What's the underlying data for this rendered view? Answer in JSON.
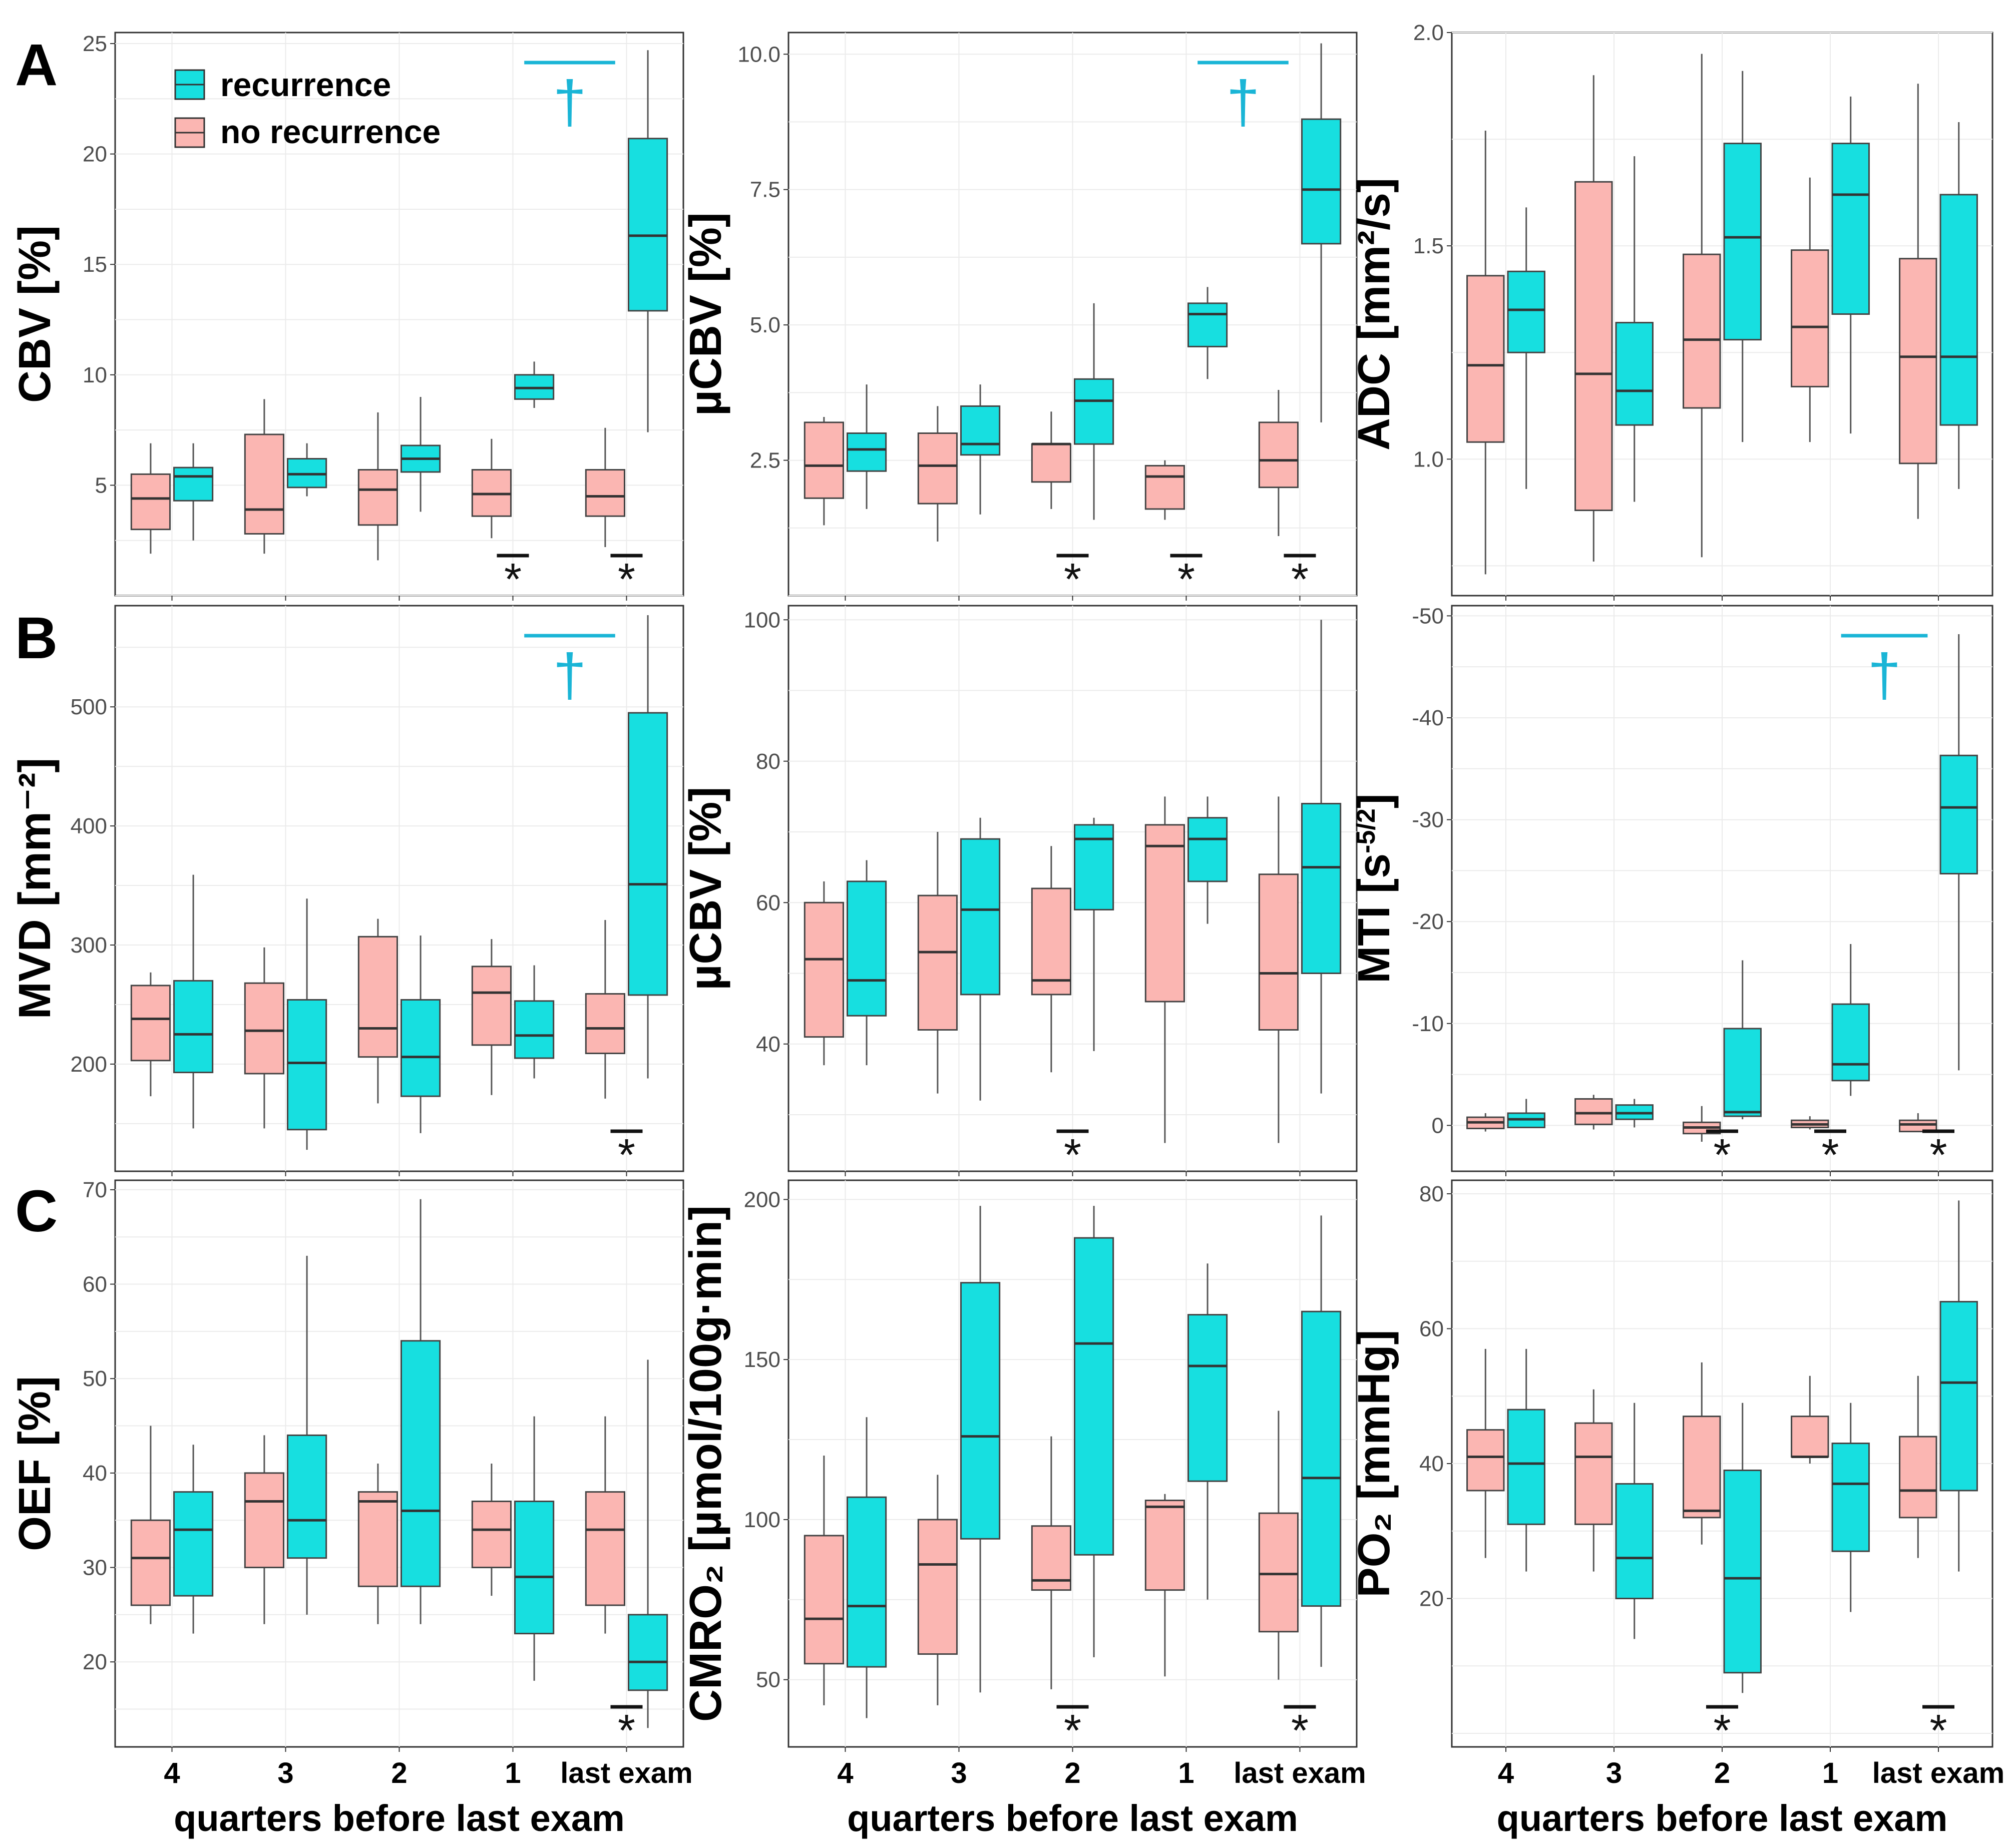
{
  "colors": {
    "recurrence": "#17dfe0",
    "no_recurrence": "#fbb6b2",
    "dagger": "#1ab5d6",
    "grid": "#ebebeb",
    "frame": "#333333",
    "whisker": "#555555"
  },
  "legend": {
    "recurrence": "recurrence",
    "no_recurrence": "no recurrence"
  },
  "panel_labels": {
    "A": "A",
    "B": "B",
    "C": "C"
  },
  "categories": [
    "4",
    "3",
    "2",
    "1",
    "last exam"
  ],
  "x_label": "quarters before last exam",
  "chart_data": [
    {
      "id": "cbv",
      "type": "box",
      "ylabel": "CBV [%]",
      "ylim": [
        0,
        25.5
      ],
      "yticks": [
        5,
        10,
        15,
        20,
        25
      ],
      "tick_labels": [
        "5",
        "10",
        "15",
        "20",
        "25"
      ],
      "series": [
        {
          "name": "no recurrence",
          "boxes": [
            [
              1.9,
              3.0,
              4.4,
              5.5,
              6.9
            ],
            [
              1.9,
              2.8,
              3.9,
              7.3,
              8.9
            ],
            [
              1.6,
              3.2,
              4.8,
              5.7,
              8.3
            ],
            [
              2.6,
              3.6,
              4.6,
              5.7,
              7.1
            ],
            [
              2.2,
              3.6,
              4.5,
              5.7,
              7.6
            ]
          ]
        },
        {
          "name": "recurrence",
          "boxes": [
            [
              2.5,
              4.3,
              5.4,
              5.8,
              6.9
            ],
            [
              4.5,
              4.9,
              5.5,
              6.2,
              6.9
            ],
            [
              3.8,
              5.6,
              6.2,
              6.8,
              9.0
            ],
            [
              8.5,
              8.9,
              9.4,
              10.0,
              10.6
            ],
            [
              7.4,
              12.9,
              16.3,
              20.7,
              24.7
            ]
          ]
        }
      ],
      "stars": [
        "*",
        "*"
      ],
      "star_positions": [
        3,
        4
      ],
      "dagger": "†",
      "dagger_range": [
        3.6,
        4.4
      ]
    },
    {
      "id": "ucbv",
      "type": "box",
      "ylabel": "µCBV [%]",
      "ylim": [
        0,
        10.4
      ],
      "yticks": [
        2.5,
        5.0,
        7.5,
        10.0
      ],
      "tick_labels": [
        "2.5",
        "5.0",
        "7.5",
        "10.0"
      ],
      "series": [
        {
          "name": "no recurrence",
          "boxes": [
            [
              1.3,
              1.8,
              2.4,
              3.2,
              3.3
            ],
            [
              1.0,
              1.7,
              2.4,
              3.0,
              3.5
            ],
            [
              1.6,
              2.1,
              2.8,
              2.8,
              3.4
            ],
            [
              1.4,
              1.6,
              2.2,
              2.4,
              2.5
            ],
            [
              1.1,
              2.0,
              2.5,
              3.2,
              3.8
            ]
          ]
        },
        {
          "name": "recurrence",
          "boxes": [
            [
              1.6,
              2.3,
              2.7,
              3.0,
              3.9
            ],
            [
              1.5,
              2.6,
              2.8,
              3.5,
              3.9
            ],
            [
              1.4,
              2.8,
              3.6,
              4.0,
              5.4
            ],
            [
              4.0,
              4.6,
              5.2,
              5.4,
              5.7
            ],
            [
              3.2,
              6.5,
              7.5,
              8.8,
              10.2
            ]
          ]
        }
      ],
      "stars": [
        "*",
        "*",
        "*"
      ],
      "star_positions": [
        2,
        3,
        4
      ],
      "dagger": "†",
      "dagger_range": [
        3.6,
        4.4
      ]
    },
    {
      "id": "adc",
      "type": "box",
      "ylabel": "ADC [mm²/s]",
      "ylim": [
        0.68,
        2.0
      ],
      "yticks": [
        1.0,
        1.5,
        2.0
      ],
      "tick_labels": [
        "1.0",
        "1.5",
        "2.0"
      ],
      "series": [
        {
          "name": "no recurrence",
          "boxes": [
            [
              0.73,
              1.04,
              1.22,
              1.43,
              1.77
            ],
            [
              0.76,
              0.88,
              1.2,
              1.65,
              1.9
            ],
            [
              0.77,
              1.12,
              1.28,
              1.48,
              1.95
            ],
            [
              1.04,
              1.17,
              1.31,
              1.49,
              1.66
            ],
            [
              0.86,
              0.99,
              1.24,
              1.47,
              1.88
            ]
          ]
        },
        {
          "name": "recurrence",
          "boxes": [
            [
              0.93,
              1.25,
              1.35,
              1.44,
              1.59
            ],
            [
              0.9,
              1.08,
              1.16,
              1.32,
              1.71
            ],
            [
              1.04,
              1.28,
              1.52,
              1.74,
              1.91
            ],
            [
              1.06,
              1.34,
              1.62,
              1.74,
              1.85
            ],
            [
              0.93,
              1.08,
              1.24,
              1.62,
              1.79
            ]
          ]
        }
      ],
      "stars": [],
      "star_positions": [],
      "dagger": "",
      "dagger_range": []
    },
    {
      "id": "mvd",
      "type": "box",
      "ylabel": "MVD [mm⁻²]",
      "ylim": [
        110,
        585
      ],
      "yticks": [
        200,
        300,
        400,
        500
      ],
      "tick_labels": [
        "200",
        "300",
        "400",
        "500"
      ],
      "series": [
        {
          "name": "no recurrence",
          "boxes": [
            [
              173,
              203,
              238,
              266,
              277
            ],
            [
              146,
              192,
              228,
              268,
              298
            ],
            [
              167,
              206,
              230,
              307,
              322
            ],
            [
              174,
              216,
              260,
              282,
              305
            ],
            [
              171,
              209,
              230,
              259,
              321
            ]
          ]
        },
        {
          "name": "recurrence",
          "boxes": [
            [
              146,
              193,
              225,
              270,
              359
            ],
            [
              128,
              145,
              201,
              254,
              339
            ],
            [
              142,
              173,
              206,
              254,
              308
            ],
            [
              188,
              205,
              224,
              253,
              283
            ],
            [
              188,
              258,
              351,
              495,
              577
            ]
          ]
        }
      ],
      "stars": [
        "*"
      ],
      "star_positions": [
        4
      ],
      "dagger": "†",
      "dagger_range": [
        3.6,
        4.4
      ]
    },
    {
      "id": "ucbv2",
      "type": "box",
      "ylabel": "µCBV [%]",
      "ylim": [
        22,
        102
      ],
      "yticks": [
        40,
        60,
        80,
        100
      ],
      "tick_labels": [
        "40",
        "60",
        "80",
        "100"
      ],
      "series": [
        {
          "name": "no recurrence",
          "boxes": [
            [
              37,
              41,
              52,
              60,
              63
            ],
            [
              33,
              42,
              53,
              61,
              70
            ],
            [
              36,
              47,
              49,
              62,
              68
            ],
            [
              26,
              46,
              68,
              71,
              75
            ],
            [
              26,
              42,
              50,
              64,
              75
            ]
          ]
        },
        {
          "name": "recurrence",
          "boxes": [
            [
              37,
              44,
              49,
              63,
              66
            ],
            [
              32,
              47,
              59,
              69,
              72
            ],
            [
              39,
              59,
              69,
              71,
              72
            ],
            [
              57,
              63,
              69,
              72,
              75
            ],
            [
              33,
              50,
              65,
              74,
              100
            ]
          ]
        }
      ],
      "stars": [
        "*"
      ],
      "star_positions": [
        2
      ],
      "dagger": "",
      "dagger_range": []
    },
    {
      "id": "mti",
      "type": "box",
      "ylabel": "MTI [s⁻⁵ᐟ²]",
      "ylabel_display": "MTI [s^-5/2]",
      "ylim": [
        4.5,
        -51
      ],
      "yticks": [
        0,
        -10,
        -20,
        -30,
        -40,
        -50
      ],
      "tick_labels": [
        "0",
        "-10",
        "-20",
        "-30",
        "-40",
        "-50"
      ],
      "series": [
        {
          "name": "no recurrence",
          "boxes": [
            [
              0.6,
              0.3,
              -0.3,
              -0.8,
              -1.2
            ],
            [
              0.4,
              -0.1,
              -1.2,
              -2.6,
              -3.0
            ],
            [
              1.6,
              0.8,
              0.2,
              -0.3,
              -1.9
            ],
            [
              0.4,
              0.2,
              -0.1,
              -0.5,
              -0.9
            ],
            [
              0.5,
              0.6,
              -0.1,
              -0.5,
              -1.2
            ]
          ]
        },
        {
          "name": "recurrence",
          "boxes": [
            [
              0.2,
              0.2,
              -0.6,
              -1.2,
              -2.6
            ],
            [
              0.2,
              -0.6,
              -1.2,
              -2.0,
              -2.6
            ],
            [
              -0.6,
              -0.9,
              -1.3,
              -9.5,
              -16.2
            ],
            [
              -2.9,
              -4.4,
              -6.0,
              -11.9,
              -17.8
            ],
            [
              -5.4,
              -24.7,
              -31.2,
              -36.3,
              -48.2
            ]
          ]
        }
      ],
      "stars": [
        "*",
        "*",
        "*"
      ],
      "star_positions": [
        2,
        3,
        4
      ],
      "dagger": "†",
      "dagger_range": [
        3.6,
        4.4
      ]
    },
    {
      "id": "oef",
      "type": "box",
      "ylabel": "OEF [%]",
      "ylim": [
        11,
        71
      ],
      "yticks": [
        20,
        30,
        40,
        50,
        60,
        70
      ],
      "tick_labels": [
        "20",
        "30",
        "40",
        "50",
        "60",
        "70"
      ],
      "series": [
        {
          "name": "no recurrence",
          "boxes": [
            [
              24,
              26,
              31,
              35,
              45
            ],
            [
              24,
              30,
              37,
              40,
              44
            ],
            [
              24,
              28,
              37,
              38,
              41
            ],
            [
              27,
              30,
              34,
              37,
              41
            ],
            [
              23,
              26,
              34,
              38,
              46
            ]
          ]
        },
        {
          "name": "recurrence",
          "boxes": [
            [
              23,
              27,
              34,
              38,
              43
            ],
            [
              25,
              31,
              35,
              44,
              63
            ],
            [
              24,
              28,
              36,
              54,
              69
            ],
            [
              18,
              23,
              29,
              37,
              46
            ],
            [
              13,
              17,
              20,
              25,
              52
            ]
          ]
        }
      ],
      "stars": [
        "*"
      ],
      "star_positions": [
        4
      ],
      "dagger": "",
      "dagger_range": []
    },
    {
      "id": "cmro2",
      "type": "box",
      "ylabel": "CMRO₂ [µmol/100g·min]",
      "ylim": [
        29,
        206
      ],
      "yticks": [
        50,
        100,
        150,
        200
      ],
      "tick_labels": [
        "50",
        "100",
        "150",
        "200"
      ],
      "series": [
        {
          "name": "no recurrence",
          "boxes": [
            [
              42,
              55,
              69,
              95,
              120
            ],
            [
              42,
              58,
              86,
              100,
              114
            ],
            [
              47,
              78,
              81,
              98,
              126
            ],
            [
              51,
              78,
              104,
              106,
              108
            ],
            [
              50,
              65,
              83,
              102,
              134
            ]
          ]
        },
        {
          "name": "recurrence",
          "boxes": [
            [
              38,
              54,
              73,
              107,
              132
            ],
            [
              46,
              94,
              126,
              174,
              198
            ],
            [
              57,
              89,
              155,
              188,
              198
            ],
            [
              75,
              112,
              148,
              164,
              180
            ],
            [
              54,
              73,
              113,
              165,
              195
            ]
          ]
        }
      ],
      "stars": [
        "*",
        "*"
      ],
      "star_positions": [
        2,
        4
      ],
      "dagger": "",
      "dagger_range": []
    },
    {
      "id": "po2",
      "type": "box",
      "ylabel": "PO₂ [mmHg]",
      "ylim": [
        -2,
        82
      ],
      "yticks": [
        20,
        40,
        60,
        80
      ],
      "tick_labels": [
        "20",
        "40",
        "60",
        "80"
      ],
      "series": [
        {
          "name": "no recurrence",
          "boxes": [
            [
              26,
              36,
              41,
              45,
              57
            ],
            [
              24,
              31,
              41,
              46,
              51
            ],
            [
              28,
              32,
              33,
              47,
              55
            ],
            [
              40,
              41,
              41,
              47,
              53
            ],
            [
              26,
              32,
              36,
              44,
              53
            ]
          ]
        },
        {
          "name": "recurrence",
          "boxes": [
            [
              24,
              31,
              40,
              48,
              57
            ],
            [
              14,
              20,
              26,
              37,
              49
            ],
            [
              6,
              9,
              23,
              39,
              49
            ],
            [
              18,
              27,
              37,
              43,
              49
            ],
            [
              24,
              36,
              52,
              64,
              79
            ]
          ]
        }
      ],
      "stars": [
        "*",
        "*"
      ],
      "star_positions": [
        2,
        4
      ],
      "dagger": "",
      "dagger_range": []
    }
  ]
}
